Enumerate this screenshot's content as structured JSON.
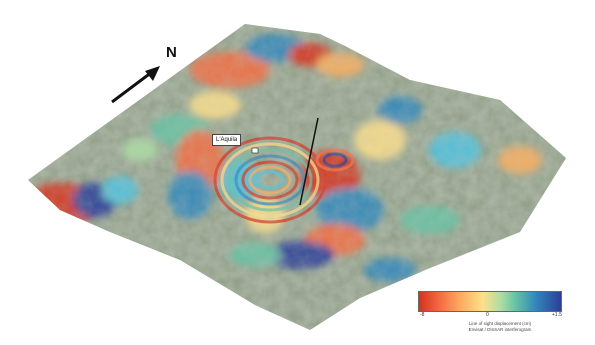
{
  "map": {
    "north_label": "N",
    "place_label": "L'Aquila",
    "legend": {
      "min_label": "-8",
      "mid_label": "0",
      "max_label": "+1.5",
      "caption_line1": "Line of sight displacement (cm)",
      "caption_line2": "Envisat / DInSAR interferogram"
    },
    "colors": {
      "red": "#d7301f",
      "orange": "#f46d43",
      "yellow": "#fee08b",
      "green": "#66c2a5",
      "cyan": "#4fc3e0",
      "blue": "#3288bd",
      "dark_blue": "#2c3e99",
      "terrain": "#8f9e86"
    }
  }
}
